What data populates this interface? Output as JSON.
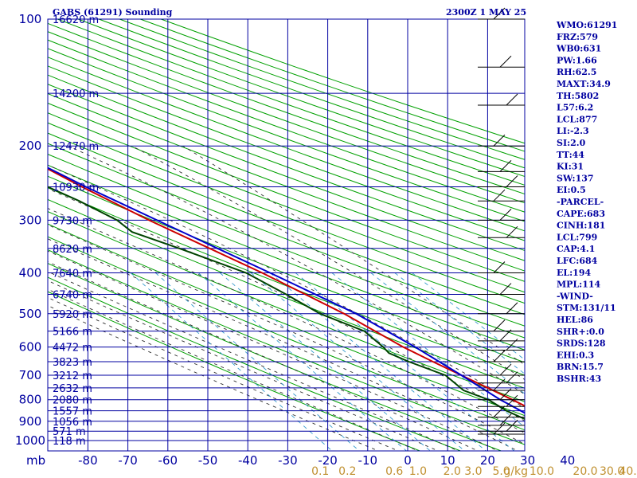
{
  "header": {
    "title": "GABS (61291) Sounding",
    "time": "2300Z  1 MAY 25"
  },
  "colors": {
    "grid": "#0000a0",
    "dry_adiabat": "#00a000",
    "moist_adiabat": "#303030",
    "mixing_ratio": "#3399cc",
    "temperature": "#cc0000",
    "dewpoint": "#004400",
    "parcel": "#0000cc",
    "text": "#0000a0",
    "mixing_label": "#c09030"
  },
  "chart_data": {
    "type": "skew-t",
    "pressure_ticks": [
      {
        "p": 100,
        "label": "100"
      },
      {
        "p": 200,
        "label": "200"
      },
      {
        "p": 300,
        "label": "300"
      },
      {
        "p": 400,
        "label": "400"
      },
      {
        "p": 500,
        "label": "500"
      },
      {
        "p": 600,
        "label": "600"
      },
      {
        "p": 700,
        "label": "700"
      },
      {
        "p": 800,
        "label": "800"
      },
      {
        "p": 900,
        "label": "900"
      },
      {
        "p": 1000,
        "label": "1000"
      }
    ],
    "height_ticks": [
      {
        "p": 100,
        "label": "16620 m"
      },
      {
        "p": 150,
        "label": "14200 m"
      },
      {
        "p": 200,
        "label": "12470 m"
      },
      {
        "p": 250,
        "label": "10930 m"
      },
      {
        "p": 300,
        "label": "9730 m"
      },
      {
        "p": 350,
        "label": "8620 m"
      },
      {
        "p": 400,
        "label": "7640 m"
      },
      {
        "p": 450,
        "label": "6740 m"
      },
      {
        "p": 500,
        "label": "5920 m"
      },
      {
        "p": 550,
        "label": "5166 m"
      },
      {
        "p": 600,
        "label": "4472 m"
      },
      {
        "p": 650,
        "label": "3823 m"
      },
      {
        "p": 700,
        "label": "3212 m"
      },
      {
        "p": 750,
        "label": "2632 m"
      },
      {
        "p": 800,
        "label": "2080 m"
      },
      {
        "p": 850,
        "label": "1557 m"
      },
      {
        "p": 900,
        "label": "1056 m"
      },
      {
        "p": 950,
        "label": "571 m"
      },
      {
        "p": 1000,
        "label": "118 m"
      }
    ],
    "temp_ticks": [
      "-80",
      "-70",
      "-60",
      "-50",
      "-40",
      "-30",
      "-20",
      "-10",
      "0",
      "10",
      "20",
      "30",
      "40"
    ],
    "temp_values": [
      -80,
      -70,
      -60,
      -50,
      -40,
      -30,
      -20,
      -10,
      0,
      10,
      20,
      30,
      40
    ],
    "mb_label": "mb",
    "mixing_ratio_labels": [
      "0.1",
      "0.2",
      "0.6",
      "1.0",
      "2.0",
      "3.0",
      "5.0",
      "10.0",
      "20.0",
      "30.0",
      "40.0"
    ],
    "mixing_ratio_unit": "g/kg",
    "series": [
      {
        "name": "temperature",
        "points": [
          {
            "p": 966,
            "t": 27
          },
          {
            "p": 925,
            "t": 23
          },
          {
            "p": 850,
            "t": 19
          },
          {
            "p": 800,
            "t": 16
          },
          {
            "p": 700,
            "t": 9
          },
          {
            "p": 650,
            "t": 5
          },
          {
            "p": 600,
            "t": 1
          },
          {
            "p": 500,
            "t": -6
          },
          {
            "p": 400,
            "t": -17
          },
          {
            "p": 300,
            "t": -33
          },
          {
            "p": 250,
            "t": -42
          },
          {
            "p": 200,
            "t": -52
          },
          {
            "p": 180,
            "t": -54
          },
          {
            "p": 150,
            "t": -61
          },
          {
            "p": 130,
            "t": -69
          },
          {
            "p": 115,
            "t": -74
          },
          {
            "p": 100,
            "t": -76
          }
        ]
      },
      {
        "name": "dewpoint",
        "points": [
          {
            "p": 966,
            "t": 20
          },
          {
            "p": 930,
            "t": 17
          },
          {
            "p": 880,
            "t": 14
          },
          {
            "p": 850,
            "t": 12
          },
          {
            "p": 800,
            "t": 10
          },
          {
            "p": 760,
            "t": 6
          },
          {
            "p": 700,
            "t": 5
          },
          {
            "p": 650,
            "t": -1
          },
          {
            "p": 620,
            "t": -4
          },
          {
            "p": 600,
            "t": -4
          },
          {
            "p": 550,
            "t": -5
          },
          {
            "p": 500,
            "t": -12
          },
          {
            "p": 450,
            "t": -16
          },
          {
            "p": 400,
            "t": -21
          },
          {
            "p": 350,
            "t": -32
          },
          {
            "p": 320,
            "t": -40
          },
          {
            "p": 300,
            "t": -41
          },
          {
            "p": 270,
            "t": -46
          },
          {
            "p": 240,
            "t": -53
          },
          {
            "p": 220,
            "t": -58
          },
          {
            "p": 190,
            "t": -64
          },
          {
            "p": 160,
            "t": -71
          },
          {
            "p": 130,
            "t": -78
          },
          {
            "p": 115,
            "t": -83
          }
        ]
      },
      {
        "name": "parcel",
        "points": [
          {
            "p": 975,
            "t": 30
          },
          {
            "p": 930,
            "t": 23
          },
          {
            "p": 880,
            "t": 17
          },
          {
            "p": 800,
            "t": 13
          },
          {
            "p": 700,
            "t": 9
          },
          {
            "p": 600,
            "t": 4
          },
          {
            "p": 500,
            "t": -3
          },
          {
            "p": 400,
            "t": -15
          },
          {
            "p": 300,
            "t": -31
          },
          {
            "p": 250,
            "t": -41
          },
          {
            "p": 200,
            "t": -52
          },
          {
            "p": 150,
            "t": -65
          },
          {
            "p": 125,
            "t": -75
          },
          {
            "p": 115,
            "t": -80
          }
        ]
      }
    ],
    "wind_levels": [
      100,
      130,
      160,
      200,
      230,
      250,
      270,
      300,
      330,
      400,
      450,
      500,
      550,
      580,
      610,
      650,
      700,
      730,
      760,
      800,
      830,
      880,
      920,
      950,
      966
    ]
  },
  "indices": [
    "WMO:61291",
    "FRZ:579",
    "WB0:631",
    "PW:1.66",
    "RH:62.5",
    "MAXT:34.9",
    "TH:5802",
    "L57:6.2",
    "LCL:877",
    "LI:-2.3",
    "SI:2.0",
    "TT:44",
    "KI:31",
    "SW:137",
    "EI:0.5",
    "-PARCEL-",
    "CAPE:683",
    "CINH:181",
    "LCL:799",
    "CAP:4.1",
    "LFC:684",
    "EL:194",
    "MPL:114",
    "-WIND-",
    "STM:131/11",
    "HEL:86",
    "SHR+:0.0",
    "SRDS:128",
    "EHI:0.3",
    "BRN:15.7",
    "BSHR:43"
  ]
}
